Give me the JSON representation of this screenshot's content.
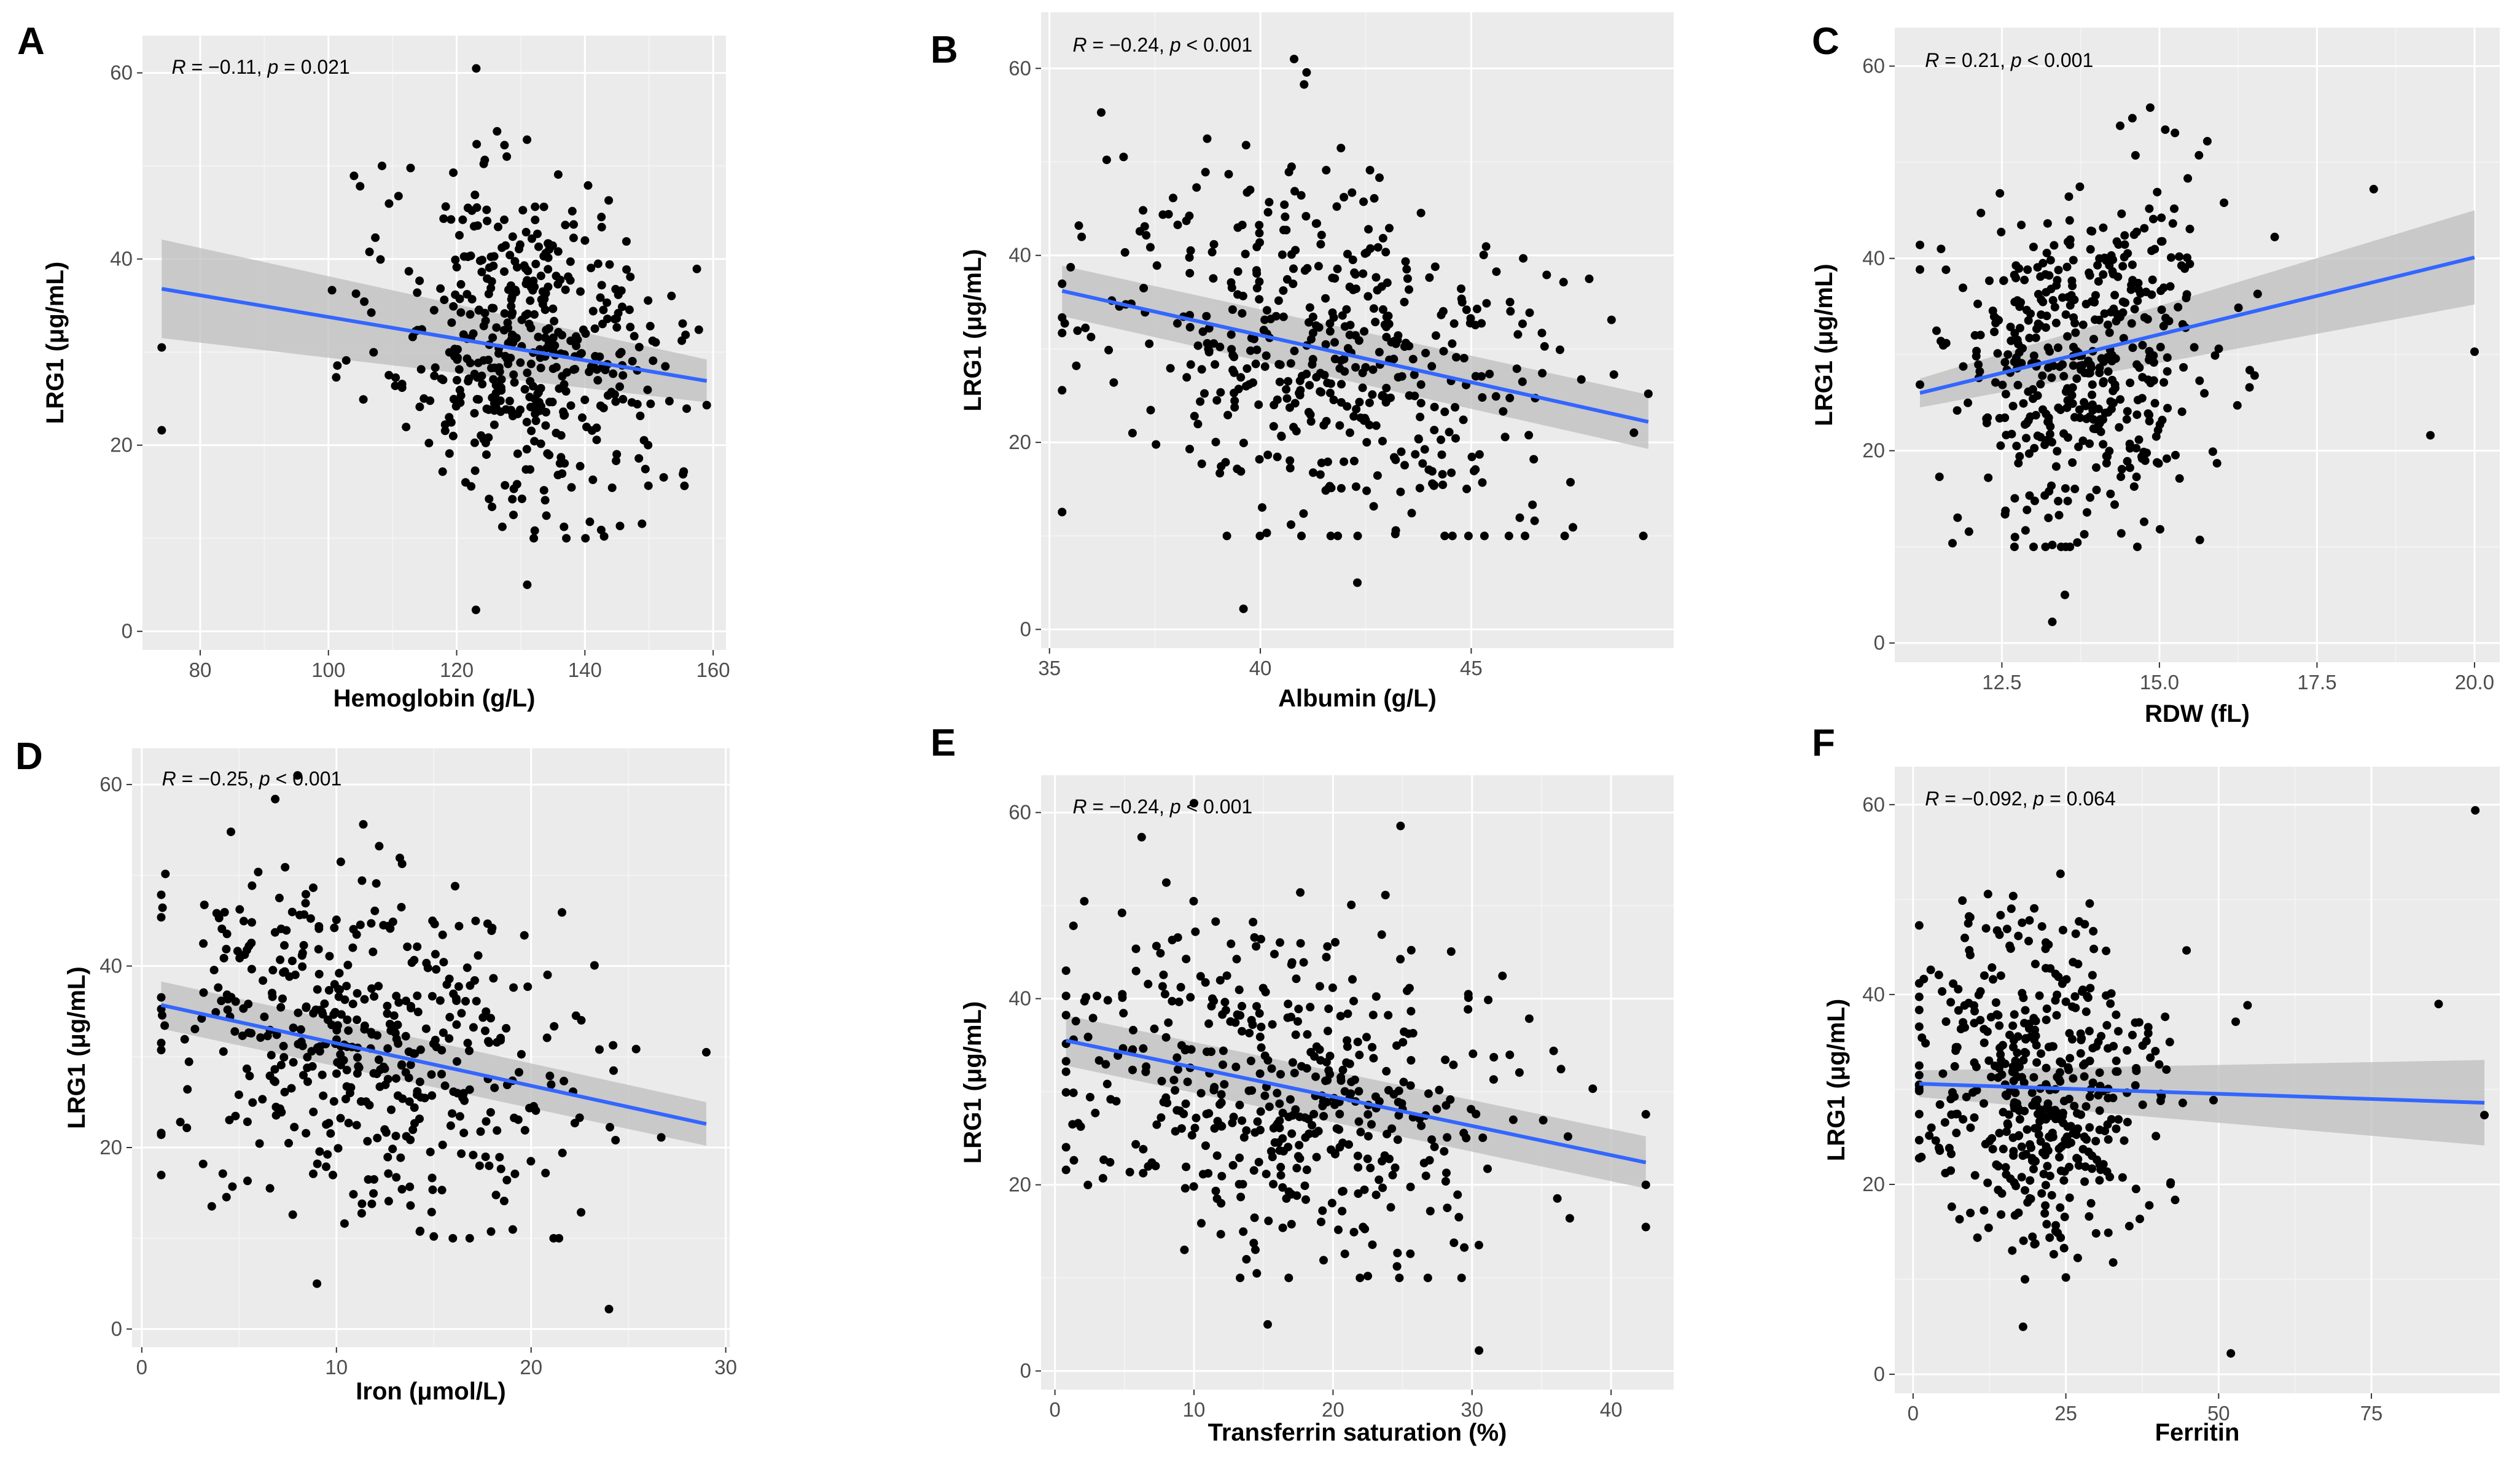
{
  "style": {
    "panel_bg": "#ebebeb",
    "grid_major": "#ffffff",
    "grid_minor": "#f3f3f3",
    "point": "#000000",
    "fit_line": "#3366ff",
    "ci_band": "#bdbdbd"
  },
  "chart_data": [
    {
      "letter": "A",
      "type": "scatter",
      "title": "",
      "xlabel": "Hemoglobin (g/L)",
      "ylabel": "LRG1 (μg/mL)",
      "xlim": [
        71,
        162
      ],
      "ylim": [
        -2,
        64
      ],
      "xticks": [
        80,
        100,
        120,
        140,
        160
      ],
      "xtick_labels": [
        "80",
        "100",
        "120",
        "140",
        "160"
      ],
      "yticks": [
        0,
        20,
        40,
        60
      ],
      "ytick_labels": [
        "0",
        "20",
        "40",
        "60"
      ],
      "annotation": {
        "R_label": "R",
        "R_text": " = −0.11, ",
        "p_label": "p",
        "p_text": " = 0.021"
      },
      "fit": {
        "x": [
          74,
          159
        ],
        "y": [
          36.8,
          26.9
        ],
        "ci_lo": [
          31.5,
          24.6
        ],
        "ci_hi": [
          42.1,
          29.2
        ]
      },
      "n_points": 470,
      "x_range": [
        74,
        159
      ],
      "x_center": 131,
      "x_spread": 11,
      "y_center": 31.5,
      "y_spread": 9,
      "extremes": [
        [
          123,
          2.3
        ],
        [
          131,
          5
        ],
        [
          143,
          10.2
        ],
        [
          74,
          21.6
        ],
        [
          74,
          30.5
        ],
        [
          159,
          24.3
        ]
      ]
    },
    {
      "letter": "B",
      "type": "scatter",
      "title": "",
      "xlabel": "Albumin (g/L)",
      "ylabel": "LRG1 (μg/mL)",
      "xlim": [
        34.8,
        49.8
      ],
      "ylim": [
        -2,
        66
      ],
      "xticks": [
        35,
        40,
        45
      ],
      "xtick_labels": [
        "35",
        "40",
        "45"
      ],
      "yticks": [
        0,
        20,
        40,
        60
      ],
      "ytick_labels": [
        "0",
        "20",
        "40",
        "60"
      ],
      "annotation": {
        "R_label": "R",
        "R_text": " = −0.24, ",
        "p_label": "p",
        "p_text": " < 0.001"
      },
      "fit": {
        "x": [
          35.3,
          49.2
        ],
        "y": [
          36.2,
          22.2
        ],
        "ci_lo": [
          33.5,
          19.3
        ],
        "ci_hi": [
          38.9,
          25.1
        ]
      },
      "n_points": 470,
      "x_range": [
        35.3,
        49.2
      ],
      "x_center": 41.5,
      "x_spread": 2.6,
      "y_center": 29.5,
      "y_spread": 9,
      "extremes": [
        [
          39.6,
          2.2
        ],
        [
          42.3,
          5
        ],
        [
          43.2,
          10.2
        ],
        [
          35.3,
          31.7
        ],
        [
          49.2,
          25.2
        ],
        [
          40.8,
          61
        ]
      ]
    },
    {
      "letter": "C",
      "type": "scatter",
      "title": "",
      "xlabel": "RDW (fL)",
      "ylabel": "LRG1 (μg/mL)",
      "xlim": [
        10.8,
        20.4
      ],
      "ylim": [
        -2,
        64
      ],
      "xticks": [
        12.5,
        15.0,
        17.5,
        20.0
      ],
      "xtick_labels": [
        "12.5",
        "15.0",
        "17.5",
        "20.0"
      ],
      "yticks": [
        0,
        20,
        40,
        60
      ],
      "ytick_labels": [
        "0",
        "20",
        "40",
        "60"
      ],
      "annotation": {
        "R_label": "R",
        "R_text": " = 0.21, ",
        "p_label": "p",
        "p_text": " < 0.001"
      },
      "fit": {
        "x": [
          11.2,
          20.0
        ],
        "y": [
          26.0,
          40.1
        ],
        "ci_lo": [
          24.5,
          35.2
        ],
        "ci_hi": [
          27.5,
          45.0
        ]
      },
      "n_points": 470,
      "x_range": [
        11.2,
        20.0
      ],
      "x_center": 13.8,
      "x_spread": 1.0,
      "y_center": 30,
      "y_spread": 9,
      "extremes": [
        [
          13.3,
          2.2
        ],
        [
          13.5,
          5
        ],
        [
          13.3,
          10.2
        ],
        [
          19.3,
          21.6
        ],
        [
          20.0,
          30.3
        ],
        [
          18.4,
          47.2
        ]
      ]
    },
    {
      "letter": "D",
      "type": "scatter",
      "title": "",
      "xlabel": "Iron (μmol/L)",
      "ylabel": "LRG1 (μg/mL)",
      "xlim": [
        -0.5,
        30.2
      ],
      "ylim": [
        -2,
        64
      ],
      "xticks": [
        0,
        10,
        20,
        30
      ],
      "xtick_labels": [
        "0",
        "10",
        "20",
        "30"
      ],
      "yticks": [
        0,
        20,
        40,
        60
      ],
      "ytick_labels": [
        "0",
        "20",
        "40",
        "60"
      ],
      "annotation": {
        "R_label": "R",
        "R_text": " = −0.25, ",
        "p_label": "p",
        "p_text": " < 0.001"
      },
      "fit": {
        "x": [
          1.0,
          29.0
        ],
        "y": [
          35.7,
          22.6
        ],
        "ci_lo": [
          33.1,
          20.2
        ],
        "ci_hi": [
          38.3,
          25.0
        ]
      },
      "n_points": 470,
      "x_range": [
        1.0,
        29.0
      ],
      "x_center": 12,
      "x_spread": 5.5,
      "y_center": 29.5,
      "y_spread": 9,
      "extremes": [
        [
          24,
          2.2
        ],
        [
          9,
          5
        ],
        [
          15,
          10.2
        ],
        [
          1,
          21.6
        ],
        [
          29,
          30.5
        ],
        [
          8,
          61
        ]
      ]
    },
    {
      "letter": "E",
      "type": "scatter",
      "title": "",
      "xlabel": "Transferrin saturation (%)",
      "ylabel": "LRG1 (μg/mL)",
      "xlim": [
        -1,
        44.5
      ],
      "ylim": [
        -2,
        64
      ],
      "xticks": [
        0,
        10,
        20,
        30,
        40
      ],
      "xtick_labels": [
        "0",
        "10",
        "20",
        "30",
        "40"
      ],
      "yticks": [
        0,
        20,
        40,
        60
      ],
      "ytick_labels": [
        "0",
        "20",
        "40",
        "60"
      ],
      "annotation": {
        "R_label": "R",
        "R_text": " = −0.24, ",
        "p_label": "p",
        "p_text": " < 0.001"
      },
      "fit": {
        "x": [
          0.8,
          42.5
        ],
        "y": [
          35.5,
          22.4
        ],
        "ci_lo": [
          32.8,
          19.6
        ],
        "ci_hi": [
          38.2,
          25.2
        ]
      },
      "n_points": 470,
      "x_range": [
        0.8,
        42.5
      ],
      "x_center": 17,
      "x_spread": 8,
      "y_center": 29.5,
      "y_spread": 9,
      "extremes": [
        [
          30.5,
          2.2
        ],
        [
          15.3,
          5
        ],
        [
          22.5,
          10.2
        ],
        [
          0.8,
          21.6
        ],
        [
          42.5,
          20
        ],
        [
          10,
          61
        ]
      ]
    },
    {
      "letter": "F",
      "type": "scatter",
      "title": "",
      "xlabel": "Ferritin",
      "ylabel": "LRG1 (μg/mL)",
      "xlim": [
        -3,
        96
      ],
      "ylim": [
        -2,
        64
      ],
      "xticks": [
        0,
        25,
        50,
        75
      ],
      "xtick_labels": [
        "0",
        "25",
        "50",
        "75"
      ],
      "yticks": [
        0,
        20,
        40,
        60
      ],
      "ytick_labels": [
        "0",
        "20",
        "40",
        "60"
      ],
      "annotation": {
        "R_label": "R",
        "R_text": " = −0.092, ",
        "p_label": "p",
        "p_text": " = 0.064"
      },
      "fit": {
        "x": [
          1.0,
          93.5
        ],
        "y": [
          30.6,
          28.6
        ],
        "ci_lo": [
          29.2,
          24.1
        ],
        "ci_hi": [
          32.0,
          33.1
        ]
      },
      "n_points": 470,
      "x_range": [
        1.0,
        93.5
      ],
      "x_center": 20,
      "x_spread": 10,
      "y_center": 29.5,
      "y_spread": 9,
      "extremes": [
        [
          52,
          2.2
        ],
        [
          18,
          5
        ],
        [
          25,
          10.2
        ],
        [
          92,
          59.4
        ],
        [
          93.5,
          27.3
        ],
        [
          86,
          39
        ]
      ]
    }
  ]
}
